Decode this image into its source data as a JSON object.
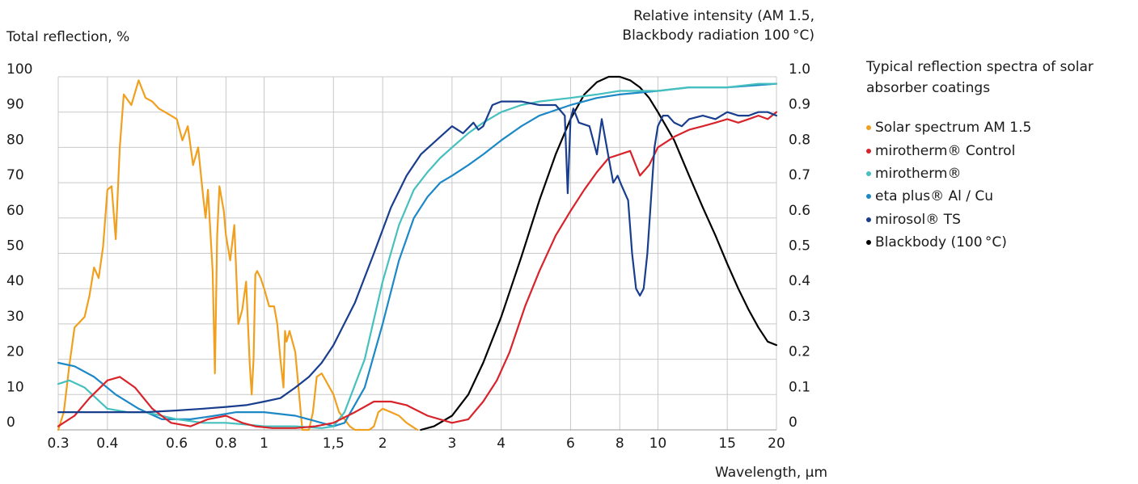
{
  "chart_data": {
    "type": "line",
    "title": "Typical reflection spectra of solar absorber coatings",
    "ylabel": "Total reflection, %",
    "y2label_line1": "Relative intensity (AM 1.5,",
    "y2label_line2": "Blackbody radiation 100 °C)",
    "xlabel": "Wavelength, µm",
    "x_scale": "log",
    "xlim": [
      0.3,
      20
    ],
    "ylim": [
      0,
      100
    ],
    "y2lim": [
      0,
      1.0
    ],
    "grid": true,
    "legend_position": "right",
    "x_ticks": [
      {
        "v": 0.3,
        "label": "0.3"
      },
      {
        "v": 0.4,
        "label": "0.4"
      },
      {
        "v": 0.6,
        "label": "0.6"
      },
      {
        "v": 0.8,
        "label": "0.8"
      },
      {
        "v": 1,
        "label": "1"
      },
      {
        "v": 1.5,
        "label": "1,5"
      },
      {
        "v": 2,
        "label": "2"
      },
      {
        "v": 3,
        "label": "3"
      },
      {
        "v": 4,
        "label": "4"
      },
      {
        "v": 6,
        "label": "6"
      },
      {
        "v": 8,
        "label": "8"
      },
      {
        "v": 10,
        "label": "10"
      },
      {
        "v": 15,
        "label": "15"
      },
      {
        "v": 20,
        "label": "20"
      }
    ],
    "y_ticks": [
      "0",
      "10",
      "20",
      "30",
      "40",
      "50",
      "60",
      "70",
      "80",
      "90",
      "100"
    ],
    "y2_ticks": [
      "0",
      "0.1",
      "0.2",
      "0.3",
      "0.4",
      "0.5",
      "0.6",
      "0.7",
      "0.8",
      "0.9",
      "1.0"
    ],
    "series": [
      {
        "name": "Solar spectrum AM 1.5",
        "color": "#f0a01e",
        "x": [
          0.3,
          0.31,
          0.32,
          0.33,
          0.35,
          0.36,
          0.37,
          0.38,
          0.39,
          0.4,
          0.41,
          0.42,
          0.43,
          0.44,
          0.46,
          0.48,
          0.5,
          0.52,
          0.54,
          0.56,
          0.58,
          0.6,
          0.62,
          0.64,
          0.66,
          0.68,
          0.7,
          0.71,
          0.72,
          0.74,
          0.75,
          0.76,
          0.77,
          0.79,
          0.8,
          0.82,
          0.84,
          0.86,
          0.88,
          0.9,
          0.92,
          0.93,
          0.94,
          0.95,
          0.96,
          0.98,
          1.0,
          1.03,
          1.06,
          1.08,
          1.1,
          1.12,
          1.13,
          1.14,
          1.16,
          1.18,
          1.2,
          1.25,
          1.3,
          1.33,
          1.36,
          1.4,
          1.45,
          1.5,
          1.55,
          1.6,
          1.65,
          1.7,
          1.75,
          1.8,
          1.85,
          1.9,
          1.95,
          2.0,
          2.1,
          2.2,
          2.3,
          2.45
        ],
        "y": [
          0,
          5,
          18,
          29,
          32,
          38,
          46,
          43,
          52,
          68,
          69,
          54,
          80,
          95,
          92,
          99,
          94,
          93,
          91,
          90,
          89,
          88,
          82,
          86,
          75,
          80,
          66,
          60,
          68,
          45,
          16,
          55,
          69,
          62,
          55,
          48,
          58,
          30,
          34,
          42,
          18,
          10,
          20,
          44,
          45,
          43,
          40,
          35,
          35,
          30,
          20,
          12,
          28,
          25,
          28,
          25,
          22,
          0,
          0,
          5,
          15,
          16,
          13,
          10,
          5,
          3,
          1,
          0,
          0,
          0,
          0,
          1,
          5,
          6,
          5,
          4,
          2,
          0
        ]
      },
      {
        "name": "mirotherm® Control",
        "color": "#d8232a",
        "x": [
          0.3,
          0.33,
          0.36,
          0.4,
          0.43,
          0.47,
          0.52,
          0.58,
          0.65,
          0.72,
          0.8,
          0.88,
          0.95,
          1.05,
          1.2,
          1.35,
          1.5,
          1.7,
          1.9,
          2.1,
          2.3,
          2.6,
          3.0,
          3.3,
          3.6,
          3.9,
          4.2,
          4.6,
          5.0,
          5.5,
          6.0,
          6.5,
          7.0,
          7.5,
          8.0,
          8.5,
          9.0,
          9.5,
          10,
          11,
          12,
          13,
          14,
          15,
          16,
          17,
          18,
          19,
          20
        ],
        "y": [
          1,
          4,
          9,
          14,
          15,
          12,
          6,
          2,
          1,
          3,
          4,
          2,
          1,
          0.5,
          0.5,
          1,
          2,
          5,
          8,
          8,
          7,
          4,
          2,
          3,
          8,
          14,
          22,
          35,
          45,
          55,
          62,
          68,
          73,
          77,
          78,
          79,
          72,
          75,
          80,
          83,
          85,
          86,
          87,
          88,
          87,
          88,
          89,
          88,
          90
        ]
      },
      {
        "name": "mirotherm®",
        "color": "#46bfbf",
        "x": [
          0.3,
          0.32,
          0.35,
          0.4,
          0.45,
          0.5,
          0.6,
          0.7,
          0.8,
          0.9,
          1.0,
          1.2,
          1.4,
          1.5,
          1.6,
          1.8,
          2.0,
          2.2,
          2.4,
          2.6,
          2.8,
          3.0,
          3.3,
          3.6,
          4.0,
          4.5,
          5.0,
          6.0,
          7.0,
          8.0,
          10,
          12,
          15,
          18,
          20
        ],
        "y": [
          13,
          14,
          12,
          6,
          5,
          5,
          3,
          2,
          2,
          1.5,
          1,
          1,
          0.5,
          1,
          5,
          20,
          42,
          58,
          68,
          73,
          77,
          80,
          84,
          87,
          90,
          92,
          93,
          94,
          95,
          96,
          96,
          97,
          97,
          98,
          98
        ]
      },
      {
        "name": "eta plus® Al / Cu",
        "color": "#1c88c6",
        "x": [
          0.3,
          0.33,
          0.37,
          0.42,
          0.48,
          0.55,
          0.65,
          0.75,
          0.85,
          1.0,
          1.2,
          1.4,
          1.5,
          1.6,
          1.8,
          2.0,
          2.2,
          2.4,
          2.6,
          2.8,
          3.0,
          3.3,
          3.6,
          4.0,
          4.5,
          5.0,
          6.0,
          7.0,
          8.0,
          10,
          12,
          15,
          20
        ],
        "y": [
          19,
          18,
          15,
          10,
          6,
          3,
          3,
          4,
          5,
          5,
          4,
          2,
          1,
          2,
          12,
          30,
          48,
          60,
          66,
          70,
          72,
          75,
          78,
          82,
          86,
          89,
          92,
          94,
          95,
          96,
          97,
          97,
          98
        ]
      },
      {
        "name": "mirosol® TS",
        "color": "#1a3e8e",
        "x": [
          0.3,
          0.4,
          0.5,
          0.6,
          0.7,
          0.8,
          0.9,
          1.0,
          1.1,
          1.2,
          1.3,
          1.4,
          1.5,
          1.7,
          1.9,
          2.1,
          2.3,
          2.5,
          2.8,
          3.0,
          3.2,
          3.4,
          3.5,
          3.6,
          3.8,
          4.0,
          4.5,
          5.0,
          5.5,
          5.8,
          5.9,
          6.0,
          6.1,
          6.3,
          6.7,
          7.0,
          7.2,
          7.5,
          7.7,
          7.9,
          8.1,
          8.4,
          8.6,
          8.8,
          9.0,
          9.2,
          9.4,
          9.6,
          9.8,
          10.0,
          10.3,
          10.6,
          11.0,
          11.5,
          12.0,
          13,
          14,
          15,
          16,
          17,
          18,
          19,
          20
        ],
        "y": [
          5,
          5,
          5,
          5.5,
          6,
          6.5,
          7,
          8,
          9,
          12,
          15,
          19,
          24,
          36,
          50,
          63,
          72,
          78,
          83,
          86,
          84,
          87,
          85,
          86,
          92,
          93,
          93,
          92,
          92,
          89,
          67,
          88,
          91,
          87,
          86,
          78,
          88,
          77,
          70,
          72,
          69,
          65,
          50,
          40,
          38,
          40,
          50,
          65,
          80,
          86,
          89,
          89,
          87,
          86,
          88,
          89,
          88,
          90,
          89,
          89,
          90,
          90,
          89
        ]
      },
      {
        "name": "Blackbody (100 °C)",
        "color": "#000000",
        "x": [
          2.5,
          2.7,
          3.0,
          3.3,
          3.6,
          4.0,
          4.5,
          5.0,
          5.5,
          6.0,
          6.5,
          7.0,
          7.5,
          8.0,
          8.5,
          9.0,
          9.5,
          10,
          11,
          12,
          13,
          14,
          15,
          16,
          17,
          18,
          19,
          20
        ],
        "y": [
          0,
          1,
          4,
          10,
          19,
          32,
          49,
          65,
          78,
          88,
          95,
          98.5,
          100,
          100,
          99,
          97,
          94,
          90,
          82,
          72,
          63,
          55,
          47,
          40,
          34,
          29,
          25,
          24
        ]
      }
    ]
  }
}
